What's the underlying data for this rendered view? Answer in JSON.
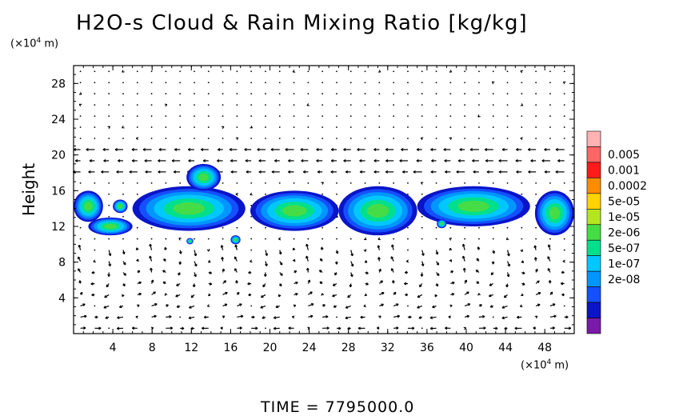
{
  "title": "H2O-s Cloud & Rain Mixing Ratio [kg/kg]",
  "y_unit": "(×10",
  "x_unit": "(×10",
  "unit_exp": "4",
  "unit_tail": " m)",
  "time_label": "TIME = 7795000.0",
  "chart_data": {
    "type": "heatmap",
    "title": "H2O-s Cloud & Rain Mixing Ratio [kg/kg]",
    "xlabel": "",
    "ylabel": "Height",
    "x_unit": "(×10^4 m)",
    "y_unit": "(×10^4 m)",
    "xlim": [
      0,
      51
    ],
    "ylim": [
      0,
      30
    ],
    "x_ticks": [
      4,
      8,
      12,
      16,
      20,
      24,
      28,
      32,
      36,
      40,
      44,
      48
    ],
    "y_ticks": [
      4,
      8,
      12,
      16,
      20,
      24,
      28
    ],
    "colorbar": {
      "labels": [
        "0.005",
        "0.001",
        "0.0002",
        "5e-05",
        "1e-05",
        "2e-06",
        "5e-07",
        "1e-07",
        "2e-08"
      ],
      "colors": [
        "#ffb3b3",
        "#ff6666",
        "#ff1a1a",
        "#ff8c00",
        "#ffd200",
        "#b4e61e",
        "#46dc46",
        "#00e08c",
        "#00c8ff",
        "#0096ff",
        "#1450ff",
        "#0a14c8",
        "#7a1aa8"
      ]
    },
    "clouds": [
      {
        "xmin": 0,
        "xmax": 3,
        "ymin": 12.5,
        "ymax": 16
      },
      {
        "xmin": 1.5,
        "xmax": 6,
        "ymin": 11,
        "ymax": 13
      },
      {
        "xmin": 4,
        "xmax": 5.5,
        "ymin": 13.5,
        "ymax": 15
      },
      {
        "xmin": 6,
        "xmax": 17.5,
        "ymin": 11.5,
        "ymax": 16.5
      },
      {
        "xmin": 11.5,
        "xmax": 15,
        "ymin": 16,
        "ymax": 19
      },
      {
        "xmin": 18,
        "xmax": 27,
        "ymin": 11.5,
        "ymax": 16
      },
      {
        "xmin": 27,
        "xmax": 35,
        "ymin": 11,
        "ymax": 16.5
      },
      {
        "xmin": 35,
        "xmax": 46.5,
        "ymin": 12,
        "ymax": 16.5
      },
      {
        "xmin": 47,
        "xmax": 51,
        "ymin": 11,
        "ymax": 16
      },
      {
        "xmin": 16,
        "xmax": 17,
        "ymin": 10,
        "ymax": 11
      },
      {
        "xmin": 11.5,
        "xmax": 12.2,
        "ymin": 10,
        "ymax": 10.7
      },
      {
        "xmin": 37,
        "xmax": 38,
        "ymin": 11.8,
        "ymax": 12.8
      }
    ]
  }
}
